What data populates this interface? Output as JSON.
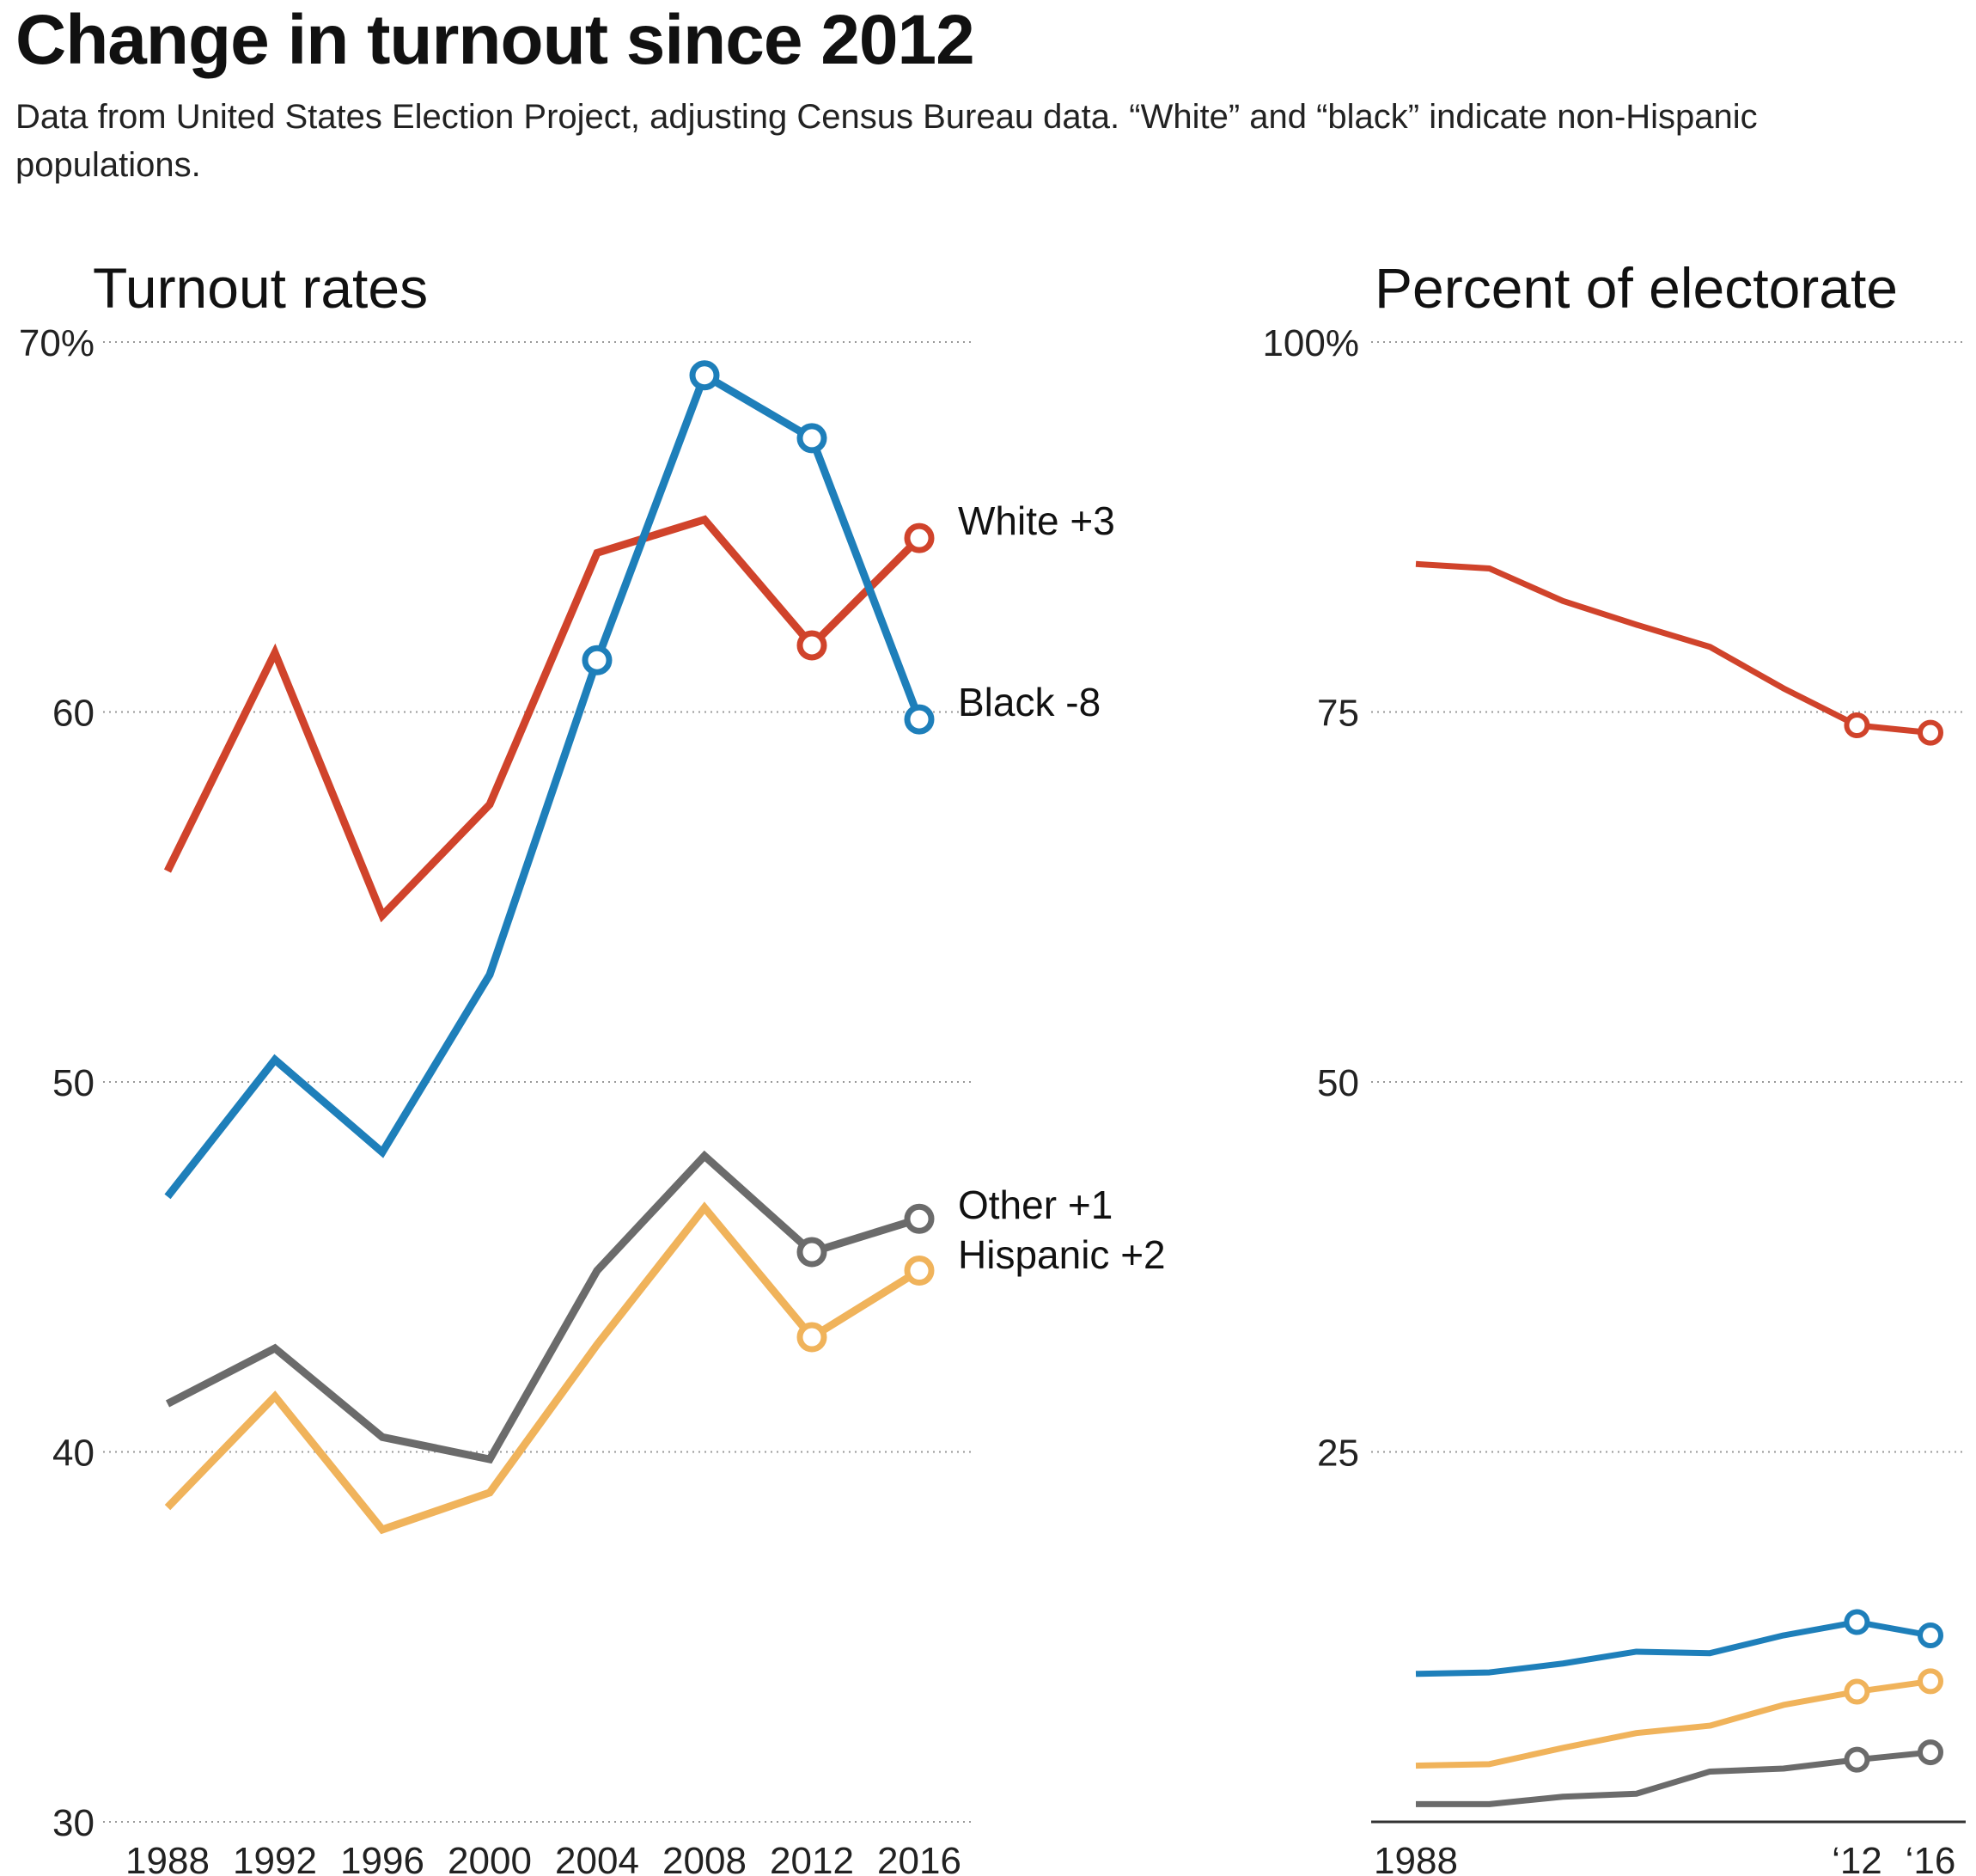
{
  "title": "Change in turnout since 2012",
  "subtitle": "Data from United States Election Project, adjusting Census Bureau data. “White” and “black” indicate non-Hispanic populations.",
  "chart_data": [
    {
      "type": "line",
      "title": "Turnout rates",
      "categories": [
        "1988",
        "1992",
        "1996",
        "2000",
        "2004",
        "2008",
        "2012",
        "2016"
      ],
      "y_tick_labels": [
        "70%",
        "60",
        "50",
        "40",
        "30"
      ],
      "ylim": [
        30,
        70
      ],
      "grid": true,
      "series": [
        {
          "name": "White",
          "change_label": "+3",
          "color": "#d0432b",
          "values": [
            55.7,
            61.6,
            54.5,
            57.5,
            64.3,
            65.2,
            61.8,
            64.7
          ]
        },
        {
          "name": "Black",
          "change_label": "-8",
          "color": "#1e7fba",
          "values": [
            46.9,
            50.6,
            48.1,
            52.9,
            61.4,
            69.1,
            67.4,
            59.8
          ]
        },
        {
          "name": "Other",
          "change_label": "+1",
          "color": "#6b6b6b",
          "values": [
            41.3,
            42.8,
            40.4,
            39.8,
            44.9,
            48.0,
            45.4,
            46.3
          ]
        },
        {
          "name": "Hispanic",
          "change_label": "+2",
          "color": "#f0b35b",
          "values": [
            38.5,
            41.5,
            37.9,
            38.9,
            42.9,
            46.6,
            43.1,
            44.9
          ]
        }
      ]
    },
    {
      "type": "line",
      "title": "Percent of electorate",
      "x": [
        1988,
        1992,
        1996,
        2000,
        2004,
        2008,
        2012,
        2016
      ],
      "x_tick_labels": [
        "1988",
        "‘12",
        "‘16"
      ],
      "y_tick_labels": [
        "100%",
        "75",
        "50",
        "25"
      ],
      "ylim": [
        0,
        100
      ],
      "grid": true,
      "series": [
        {
          "color": "#d0432b",
          "values": [
            85.0,
            84.7,
            82.5,
            80.9,
            79.4,
            76.6,
            74.1,
            73.6
          ]
        },
        {
          "color": "#1e7fba",
          "values": [
            10.0,
            10.1,
            10.7,
            11.5,
            11.4,
            12.6,
            13.5,
            12.6
          ]
        },
        {
          "color": "#f0b35b",
          "values": [
            3.8,
            3.9,
            5.0,
            6.0,
            6.5,
            7.9,
            8.8,
            9.5
          ]
        },
        {
          "color": "#6b6b6b",
          "values": [
            1.2,
            1.2,
            1.7,
            1.9,
            3.4,
            3.6,
            4.2,
            4.7
          ]
        }
      ]
    }
  ]
}
